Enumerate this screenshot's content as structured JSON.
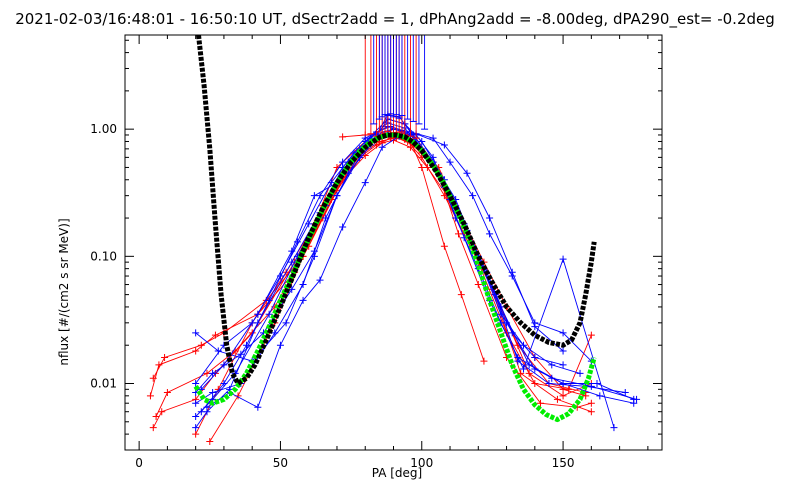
{
  "chart_data": {
    "type": "scatter",
    "title": "2021-02-03/16:48:01 - 16:50:10 UT, dSectr2add = 1, dPhAng2add = -8.00deg, dPA290_est=  -0.2deg",
    "xlabel": "PA [deg]",
    "ylabel": "nflux [#/(cm2 s sr MeV)]",
    "xlim": [
      -5,
      185
    ],
    "ylim": [
      0.003,
      5.5
    ],
    "yscale": "log",
    "grid": false,
    "x_ticks": [
      "0",
      "50",
      "100",
      "150"
    ],
    "y_ticks": [
      "0.01",
      "0.10",
      "1.00"
    ],
    "colors": {
      "red": "#ff0000",
      "blue": "#0000ff",
      "green": "#00ee00",
      "black": "#000000"
    },
    "series": [
      {
        "color": "#ff0000",
        "x": [
          5,
          8,
          20,
          27,
          40,
          55,
          65,
          72,
          80,
          85,
          90,
          95,
          100,
          108,
          115,
          125,
          135,
          148,
          160
        ],
        "y": [
          0.0045,
          0.006,
          0.0075,
          0.012,
          0.025,
          0.09,
          0.25,
          0.45,
          0.7,
          0.85,
          0.88,
          0.8,
          0.6,
          0.3,
          0.15,
          0.055,
          0.012,
          0.0075,
          0.006
        ]
      },
      {
        "color": "#ff0000",
        "x": [
          4,
          7,
          20,
          27,
          42,
          55,
          65,
          72,
          80,
          86,
          90,
          96,
          102,
          110,
          118,
          128,
          138,
          150,
          160
        ],
        "y": [
          0.008,
          0.014,
          0.018,
          0.024,
          0.035,
          0.075,
          0.2,
          0.4,
          0.62,
          0.78,
          0.82,
          0.72,
          0.5,
          0.28,
          0.12,
          0.04,
          0.012,
          0.008,
          0.01
        ]
      },
      {
        "color": "#ff0000",
        "x": [
          5,
          9,
          22,
          30,
          45,
          58,
          68,
          75,
          82,
          88,
          92,
          98,
          104,
          112,
          120,
          130,
          140,
          152,
          160
        ],
        "y": [
          0.011,
          0.016,
          0.02,
          0.025,
          0.045,
          0.1,
          0.28,
          0.55,
          0.78,
          0.92,
          0.95,
          0.85,
          0.55,
          0.2,
          0.09,
          0.025,
          0.01,
          0.009,
          0.024
        ]
      },
      {
        "color": "#ff0000",
        "x": [
          6,
          10,
          24,
          34,
          48,
          60,
          70,
          78,
          84,
          89,
          94,
          100,
          106,
          113,
          120,
          130,
          142,
          155,
          160
        ],
        "y": [
          0.0055,
          0.0085,
          0.012,
          0.018,
          0.04,
          0.12,
          0.33,
          0.6,
          0.75,
          0.85,
          0.83,
          0.65,
          0.45,
          0.15,
          0.06,
          0.016,
          0.007,
          0.0065,
          0.007
        ]
      },
      {
        "color": "#ff0000",
        "x": [
          20,
          28,
          40,
          52,
          62,
          70,
          80,
          86,
          92,
          98,
          106,
          112,
          122,
          130,
          140,
          150,
          158
        ],
        "y": [
          0.004,
          0.009,
          0.03,
          0.075,
          0.18,
          0.5,
          0.8,
          0.88,
          0.9,
          0.75,
          0.5,
          0.25,
          0.09,
          0.04,
          0.016,
          0.009,
          0.008
        ]
      },
      {
        "color": "#ff0000",
        "x": [
          25,
          35,
          48,
          58,
          68,
          78,
          85,
          91,
          97,
          104,
          110,
          118,
          126,
          134,
          145,
          158
        ],
        "y": [
          0.0035,
          0.008,
          0.03,
          0.1,
          0.3,
          0.62,
          0.8,
          0.86,
          0.75,
          0.5,
          0.28,
          0.12,
          0.05,
          0.02,
          0.01,
          0.0085
        ]
      },
      {
        "color": "#ff0000",
        "x": [
          72,
          80,
          88,
          95,
          100,
          108,
          114,
          122
        ],
        "y": [
          0.87,
          0.9,
          0.92,
          0.9,
          0.5,
          0.12,
          0.05,
          0.015
        ]
      },
      {
        "color": "#0000ff",
        "x": [
          20,
          28,
          40,
          52,
          62,
          70,
          78,
          84,
          88,
          92,
          97,
          104,
          112,
          120,
          130,
          140,
          150,
          162,
          175
        ],
        "y": [
          0.025,
          0.018,
          0.015,
          0.03,
          0.1,
          0.3,
          0.6,
          0.9,
          1.3,
          1.25,
          0.9,
          0.55,
          0.28,
          0.1,
          0.03,
          0.013,
          0.01,
          0.01,
          0.0075
        ]
      },
      {
        "color": "#0000ff",
        "x": [
          20,
          26,
          36,
          48,
          58,
          66,
          74,
          82,
          88,
          94,
          100,
          108,
          116,
          126,
          134,
          145,
          158,
          172
        ],
        "y": [
          0.007,
          0.0085,
          0.01,
          0.025,
          0.06,
          0.2,
          0.45,
          0.75,
          1.2,
          1.1,
          0.8,
          0.4,
          0.16,
          0.05,
          0.015,
          0.01,
          0.0095,
          0.0085
        ]
      },
      {
        "color": "#0000ff",
        "x": [
          20,
          26,
          34,
          46,
          56,
          66,
          74,
          82,
          88,
          94,
          100,
          108,
          115,
          124,
          134,
          146,
          160,
          176
        ],
        "y": [
          0.0055,
          0.0075,
          0.012,
          0.035,
          0.1,
          0.25,
          0.55,
          0.85,
          1.12,
          1.02,
          0.7,
          0.35,
          0.14,
          0.045,
          0.016,
          0.011,
          0.0095,
          0.0075
        ]
      },
      {
        "color": "#0000ff",
        "x": [
          20,
          24,
          32,
          42,
          54,
          64,
          72,
          80,
          88,
          94,
          102,
          110,
          118,
          128,
          138,
          150,
          163,
          175
        ],
        "y": [
          0.0045,
          0.006,
          0.009,
          0.03,
          0.09,
          0.22,
          0.5,
          0.8,
          1.2,
          1.1,
          0.6,
          0.28,
          0.12,
          0.04,
          0.014,
          0.01,
          0.008,
          0.007
        ]
      },
      {
        "color": "#0000ff",
        "x": [
          22,
          30,
          42,
          54,
          62,
          70,
          78,
          86,
          90,
          98,
          104,
          112,
          120,
          128,
          136,
          150,
          168
        ],
        "y": [
          0.009,
          0.014,
          0.035,
          0.11,
          0.3,
          0.38,
          0.7,
          0.95,
          1.0,
          0.9,
          0.6,
          0.2,
          0.08,
          0.03,
          0.013,
          0.095,
          0.0045
        ]
      },
      {
        "color": "#0000ff",
        "x": [
          20,
          26,
          36,
          44,
          54,
          62,
          70,
          78,
          86,
          90,
          96,
          104,
          110,
          118,
          124,
          132,
          140,
          150,
          160
        ],
        "y": [
          0.0085,
          0.012,
          0.017,
          0.025,
          0.055,
          0.11,
          0.3,
          0.65,
          0.9,
          1.0,
          0.95,
          0.85,
          0.55,
          0.3,
          0.15,
          0.07,
          0.03,
          0.025,
          0.015
        ]
      },
      {
        "color": "#0000ff",
        "x": [
          24,
          32,
          42,
          50,
          58,
          64,
          72,
          80,
          86,
          92,
          98,
          108,
          116,
          124,
          132,
          140,
          150
        ],
        "y": [
          0.0065,
          0.0085,
          0.0065,
          0.02,
          0.045,
          0.065,
          0.17,
          0.38,
          0.72,
          0.88,
          0.92,
          0.75,
          0.45,
          0.2,
          0.075,
          0.028,
          0.018
        ]
      },
      {
        "color": "#0000ff",
        "x": [
          20,
          30,
          40,
          50,
          60,
          68,
          76,
          84,
          89,
          93,
          99,
          107,
          115,
          123,
          132,
          140,
          150
        ],
        "y": [
          0.01,
          0.02,
          0.03,
          0.07,
          0.18,
          0.38,
          0.65,
          0.95,
          1.05,
          0.98,
          0.72,
          0.42,
          0.18,
          0.075,
          0.025,
          0.016,
          0.014
        ]
      },
      {
        "color": "#0000ff",
        "x": [
          22,
          30,
          38,
          46,
          56,
          64,
          72,
          80,
          88,
          96,
          104,
          110,
          120,
          128,
          136,
          146,
          156
        ],
        "y": [
          0.006,
          0.01,
          0.02,
          0.045,
          0.13,
          0.3,
          0.55,
          0.85,
          1.05,
          0.9,
          0.55,
          0.3,
          0.1,
          0.035,
          0.02,
          0.014,
          0.012
        ]
      }
    ],
    "spikes": [
      {
        "color": "#ff0000",
        "x": [
          80,
          82,
          84,
          85,
          86,
          87,
          88,
          89,
          90,
          91,
          92,
          93,
          94,
          96,
          98
        ],
        "y_from": [
          0.9,
          0.92,
          0.88,
          0.95,
          0.9,
          0.93,
          0.96,
          0.91,
          0.94,
          0.9,
          0.92,
          0.95,
          0.9,
          0.88,
          0.85
        ]
      },
      {
        "color": "#0000ff",
        "x": [
          83,
          85,
          86,
          87,
          88,
          89,
          90,
          91,
          92,
          93,
          95,
          97,
          99,
          101
        ],
        "y_from": [
          1.1,
          1.2,
          1.25,
          1.3,
          1.28,
          1.32,
          1.25,
          1.3,
          1.22,
          1.28,
          1.2,
          1.15,
          1.1,
          1.0
        ]
      }
    ],
    "green_curve": {
      "x": [
        20,
        23,
        26,
        30,
        34,
        38,
        42,
        46,
        50,
        54,
        58,
        62,
        66,
        70,
        74,
        78,
        82,
        85,
        88,
        91,
        94,
        97,
        100,
        104,
        108,
        112,
        116,
        120,
        124,
        128,
        132,
        136,
        140,
        144,
        148,
        152,
        156,
        159,
        161
      ],
      "y": [
        0.0095,
        0.0075,
        0.007,
        0.0075,
        0.009,
        0.012,
        0.018,
        0.028,
        0.045,
        0.07,
        0.11,
        0.17,
        0.26,
        0.38,
        0.52,
        0.67,
        0.8,
        0.86,
        0.9,
        0.9,
        0.86,
        0.79,
        0.68,
        0.52,
        0.37,
        0.24,
        0.15,
        0.085,
        0.045,
        0.025,
        0.014,
        0.009,
        0.0068,
        0.0057,
        0.0052,
        0.0058,
        0.0075,
        0.011,
        0.016
      ]
    },
    "black_curve": {
      "x": [
        21,
        23,
        25,
        27,
        29,
        31,
        33,
        35,
        38,
        41,
        45,
        50,
        55,
        60,
        65,
        70,
        75,
        80,
        85,
        88,
        91,
        94,
        97,
        100,
        105,
        110,
        115,
        120,
        125,
        130,
        135,
        140,
        145,
        150,
        153,
        156,
        158,
        160,
        161
      ],
      "y": [
        5.5,
        2.2,
        0.7,
        0.18,
        0.05,
        0.02,
        0.012,
        0.01,
        0.011,
        0.014,
        0.022,
        0.04,
        0.075,
        0.14,
        0.24,
        0.38,
        0.55,
        0.72,
        0.86,
        0.9,
        0.9,
        0.87,
        0.79,
        0.68,
        0.47,
        0.3,
        0.18,
        0.1,
        0.062,
        0.04,
        0.03,
        0.024,
        0.021,
        0.02,
        0.022,
        0.03,
        0.05,
        0.09,
        0.13
      ]
    }
  }
}
